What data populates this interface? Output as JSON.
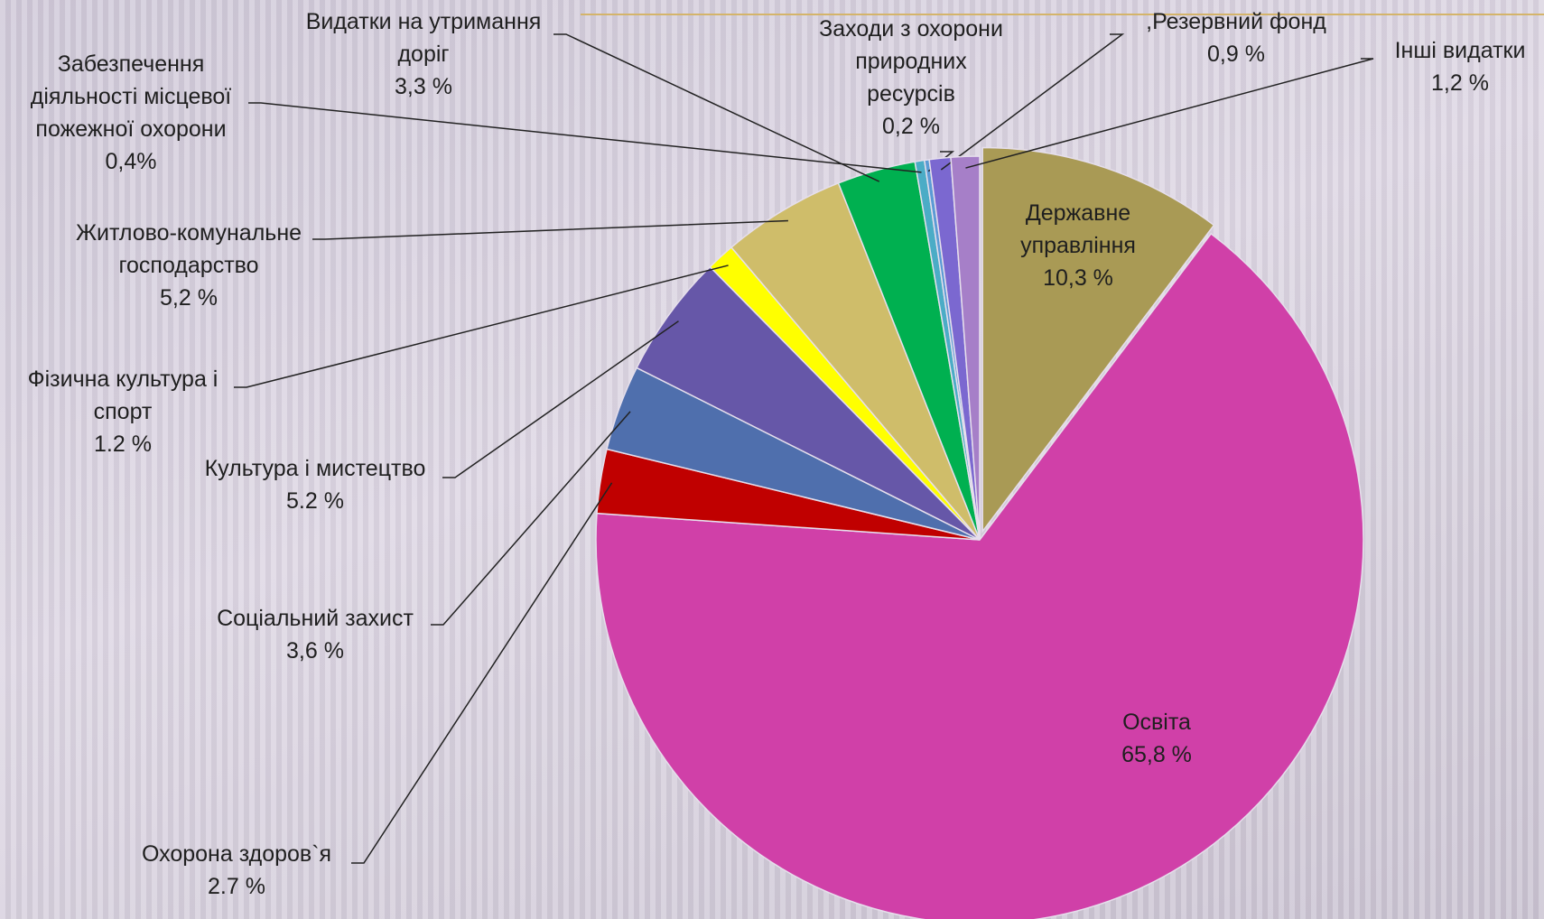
{
  "chart_data": {
    "type": "pie",
    "categories": [
      "Державне управління",
      "Освіта",
      "Охорона здоров`я",
      "Соціальний захист",
      "Культура і мистецтво",
      "Фізична культура і спорт",
      "Житлово-комунальне господарство",
      "Видатки на утримання доріг",
      "Забезпечення діяльності місцевої пожежної охорони",
      "Заходи з охорони природних ресурсів",
      ",Резервний фонд",
      "Інші видатки"
    ],
    "values": [
      10.3,
      65.8,
      2.7,
      3.6,
      5.2,
      1.2,
      5.2,
      3.3,
      0.4,
      0.2,
      0.9,
      1.2
    ],
    "value_labels": [
      "10,3 %",
      "65,8 %",
      "2.7 %",
      "3,6 %",
      "5.2 %",
      "1.2 %",
      "5,2 %",
      "3,3 %",
      "0,4%",
      "0,2 %",
      "0,9 %",
      "1,2 %"
    ],
    "colors": [
      "#a99a55",
      "#d040a8",
      "#c00000",
      "#4f6fad",
      "#6657a8",
      "#ffff00",
      "#cfbd6a",
      "#00b050",
      "#4bacc6",
      "#5b9bd5",
      "#7b68d0",
      "#a67fc8"
    ]
  }
}
